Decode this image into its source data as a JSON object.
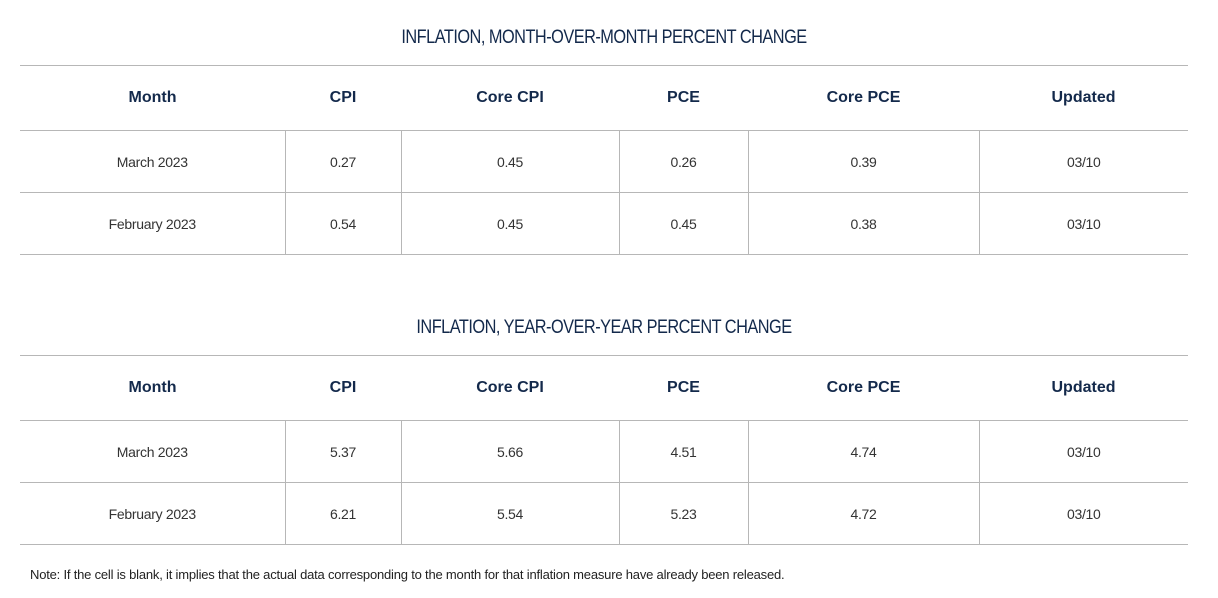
{
  "tables": [
    {
      "title": "INFLATION, MONTH-OVER-MONTH PERCENT CHANGE",
      "headers": [
        "Month",
        "CPI",
        "Core CPI",
        "PCE",
        "Core PCE",
        "Updated"
      ],
      "rows": [
        [
          "March 2023",
          "0.27",
          "0.45",
          "0.26",
          "0.39",
          "03/10"
        ],
        [
          "February 2023",
          "0.54",
          "0.45",
          "0.45",
          "0.38",
          "03/10"
        ]
      ]
    },
    {
      "title": "INFLATION, YEAR-OVER-YEAR PERCENT CHANGE",
      "headers": [
        "Month",
        "CPI",
        "Core CPI",
        "PCE",
        "Core PCE",
        "Updated"
      ],
      "rows": [
        [
          "March 2023",
          "5.37",
          "5.66",
          "4.51",
          "4.74",
          "03/10"
        ],
        [
          "February 2023",
          "6.21",
          "5.54",
          "5.23",
          "4.72",
          "03/10"
        ]
      ]
    }
  ],
  "note": "Note: If the cell is blank, it implies that the actual data corresponding to the month for that inflation measure have already been released."
}
